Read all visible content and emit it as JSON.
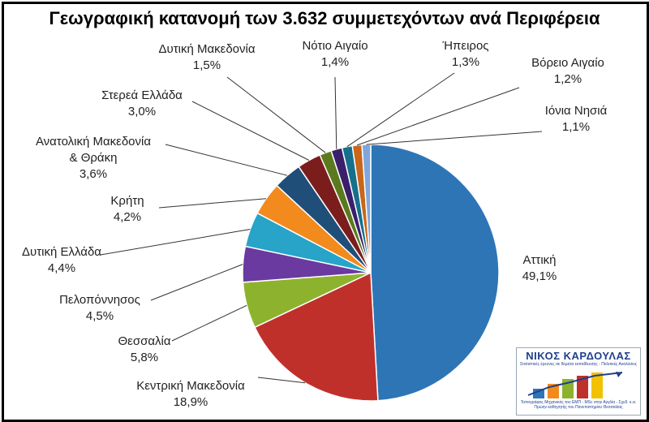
{
  "chart_data": {
    "type": "pie",
    "title": "Γεωγραφική κατανομή των 3.632 συμμετεχόντων ανά Περιφέρεια",
    "slices": [
      {
        "label": "Αττική",
        "value": 49.1,
        "value_text": "49,1%",
        "color": "#2e75b6"
      },
      {
        "label": "Κεντρική Μακεδονία",
        "value": 18.9,
        "value_text": "18,9%",
        "color": "#c0302b"
      },
      {
        "label": "Θεσσαλία",
        "value": 5.8,
        "value_text": "5,8%",
        "color": "#8db32e"
      },
      {
        "label": "Πελοπόννησος",
        "value": 4.5,
        "value_text": "4,5%",
        "color": "#6a3aa0"
      },
      {
        "label": "Δυτική Ελλάδα",
        "value": 4.4,
        "value_text": "4,4%",
        "color": "#27a4c8"
      },
      {
        "label": "Κρήτη",
        "value": 4.2,
        "value_text": "4,2%",
        "color": "#f28a1e"
      },
      {
        "label": "Ανατολική Μακεδονία & Θράκη",
        "value": 3.6,
        "value_text": "3,6%",
        "color": "#1f4e79"
      },
      {
        "label": "Στερεά Ελλάδα",
        "value": 3.0,
        "value_text": "3,0%",
        "color": "#7b1d1d"
      },
      {
        "label": "Δυτική Μακεδονία",
        "value": 1.5,
        "value_text": "1,5%",
        "color": "#5b7a1e"
      },
      {
        "label": "Νότιο Αιγαίο",
        "value": 1.4,
        "value_text": "1,4%",
        "color": "#3b1f6b"
      },
      {
        "label": "Ήπειρος",
        "value": 1.3,
        "value_text": "1,3%",
        "color": "#16708c"
      },
      {
        "label": "Βόρειο Αιγαίο",
        "value": 1.2,
        "value_text": "1,2%",
        "color": "#c9661a"
      },
      {
        "label": "Ιόνια Νησιά",
        "value": 1.1,
        "value_text": "1,1%",
        "color": "#7fa7dc"
      }
    ],
    "legend": "none",
    "label_style": "outside labels with leader lines"
  },
  "logo": {
    "name": "ΝΙΚΟΣ ΚΑΡΔΟΥΛΑΣ",
    "subtitle": "Στατιστικές έρευνες σε θέματα εκπαίδευσης - Πολιτικές Αναλύσεις",
    "footer_line1": "Τοπογράφος Μηχανικός του ΕΜΠ - MSc στην Αγγλία - Σχεδ. κ.α.",
    "footer_line2": "Πρώην καθηγητής του Πανεπιστημίου Θεσσαλίας"
  }
}
